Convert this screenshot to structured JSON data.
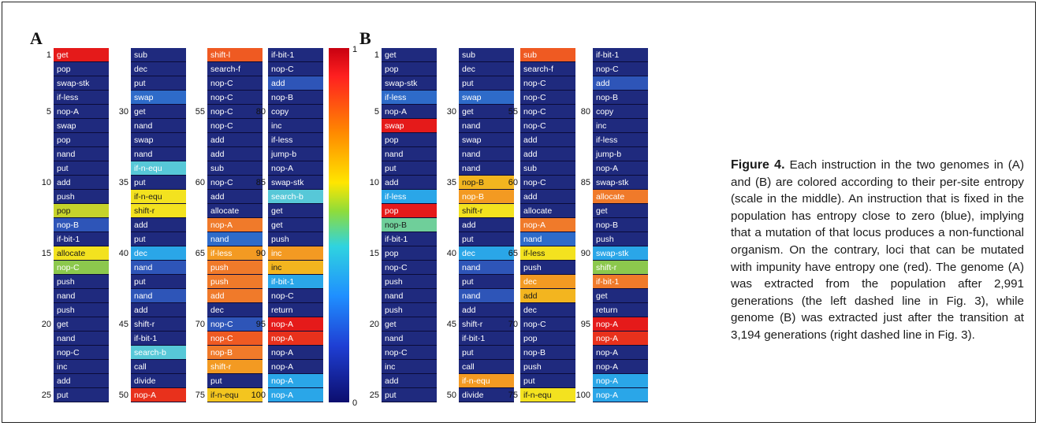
{
  "panel_a": {
    "label": "A",
    "columns": [
      {
        "start": 1,
        "cells": [
          {
            "t": "get",
            "c": "#e51a1a"
          },
          {
            "t": "pop",
            "c": "#1f2a7e"
          },
          {
            "t": "swap-stk",
            "c": "#1f2a7e"
          },
          {
            "t": "if-less",
            "c": "#1f2a7e"
          },
          {
            "t": "nop-A",
            "c": "#1f2a7e"
          },
          {
            "t": "swap",
            "c": "#1f2a7e"
          },
          {
            "t": "pop",
            "c": "#1f2a7e"
          },
          {
            "t": "nand",
            "c": "#1f2a7e"
          },
          {
            "t": "put",
            "c": "#1f2a7e"
          },
          {
            "t": "add",
            "c": "#1f2a7e"
          },
          {
            "t": "push",
            "c": "#1f2a7e"
          },
          {
            "t": "pop",
            "c": "#c6d32b"
          },
          {
            "t": "nop-B",
            "c": "#2e55b8"
          },
          {
            "t": "if-bit-1",
            "c": "#1f2a7e"
          },
          {
            "t": "allocate",
            "c": "#f3e21f"
          },
          {
            "t": "nop-C",
            "c": "#8cc84d"
          },
          {
            "t": "push",
            "c": "#1f2a7e"
          },
          {
            "t": "nand",
            "c": "#1f2a7e"
          },
          {
            "t": "push",
            "c": "#1f2a7e"
          },
          {
            "t": "get",
            "c": "#1f2a7e"
          },
          {
            "t": "nand",
            "c": "#1f2a7e"
          },
          {
            "t": "nop-C",
            "c": "#1f2a7e"
          },
          {
            "t": "inc",
            "c": "#1f2a7e"
          },
          {
            "t": "add",
            "c": "#1f2a7e"
          },
          {
            "t": "put",
            "c": "#1f2a7e"
          }
        ]
      },
      {
        "start": 26,
        "cells": [
          {
            "t": "sub",
            "c": "#1f2a7e"
          },
          {
            "t": "dec",
            "c": "#1f2a7e"
          },
          {
            "t": "put",
            "c": "#1f2a7e"
          },
          {
            "t": "swap",
            "c": "#2e6bc9"
          },
          {
            "t": "get",
            "c": "#1f2a7e"
          },
          {
            "t": "nand",
            "c": "#1f2a7e"
          },
          {
            "t": "swap",
            "c": "#1f2a7e"
          },
          {
            "t": "nand",
            "c": "#1f2a7e"
          },
          {
            "t": "if-n-equ",
            "c": "#57c8d8"
          },
          {
            "t": "put",
            "c": "#1f2a7e"
          },
          {
            "t": "if-n-equ",
            "c": "#f3e21f"
          },
          {
            "t": "shift-r",
            "c": "#f3e21f"
          },
          {
            "t": "add",
            "c": "#1f2a7e"
          },
          {
            "t": "put",
            "c": "#1f2a7e"
          },
          {
            "t": "dec",
            "c": "#2aa6e8"
          },
          {
            "t": "nand",
            "c": "#2e55b8"
          },
          {
            "t": "put",
            "c": "#1f2a7e"
          },
          {
            "t": "nand",
            "c": "#2e55b8"
          },
          {
            "t": "add",
            "c": "#1f2a7e"
          },
          {
            "t": "shift-r",
            "c": "#1f2a7e"
          },
          {
            "t": "if-bit-1",
            "c": "#1f2a7e"
          },
          {
            "t": "search-b",
            "c": "#57c8d8"
          },
          {
            "t": "call",
            "c": "#1f2a7e"
          },
          {
            "t": "divide",
            "c": "#1f2a7e"
          },
          {
            "t": "nop-A",
            "c": "#e8311c"
          }
        ]
      },
      {
        "start": 51,
        "cells": [
          {
            "t": "shift-l",
            "c": "#ef5a22"
          },
          {
            "t": "search-f",
            "c": "#1f2a7e"
          },
          {
            "t": "nop-C",
            "c": "#1f2a7e"
          },
          {
            "t": "nop-C",
            "c": "#1f2a7e"
          },
          {
            "t": "nop-C",
            "c": "#1f2a7e"
          },
          {
            "t": "nop-C",
            "c": "#1f2a7e"
          },
          {
            "t": "add",
            "c": "#1f2a7e"
          },
          {
            "t": "add",
            "c": "#1f2a7e"
          },
          {
            "t": "sub",
            "c": "#1f2a7e"
          },
          {
            "t": "nop-C",
            "c": "#1f2a7e"
          },
          {
            "t": "add",
            "c": "#1f2a7e"
          },
          {
            "t": "allocate",
            "c": "#1f2a7e"
          },
          {
            "t": "nop-A",
            "c": "#f07a2a"
          },
          {
            "t": "nand",
            "c": "#2e6bc9"
          },
          {
            "t": "if-less",
            "c": "#f39a22"
          },
          {
            "t": "push",
            "c": "#f07a2a"
          },
          {
            "t": "push",
            "c": "#f07a2a"
          },
          {
            "t": "add",
            "c": "#f07a2a"
          },
          {
            "t": "dec",
            "c": "#1f2a7e"
          },
          {
            "t": "nop-C",
            "c": "#2e55b8"
          },
          {
            "t": "nop-C",
            "c": "#ef5a22"
          },
          {
            "t": "nop-B",
            "c": "#f07a2a"
          },
          {
            "t": "shift-r",
            "c": "#f39a22"
          },
          {
            "t": "put",
            "c": "#1f2a7e"
          },
          {
            "t": "if-n-equ",
            "c": "#f3c51f"
          }
        ]
      },
      {
        "start": 76,
        "cells": [
          {
            "t": "if-bit-1",
            "c": "#1f2a7e"
          },
          {
            "t": "nop-C",
            "c": "#1f2a7e"
          },
          {
            "t": "add",
            "c": "#2e55b8"
          },
          {
            "t": "nop-B",
            "c": "#1f2a7e"
          },
          {
            "t": "copy",
            "c": "#1f2a7e"
          },
          {
            "t": "inc",
            "c": "#1f2a7e"
          },
          {
            "t": "if-less",
            "c": "#1f2a7e"
          },
          {
            "t": "jump-b",
            "c": "#1f2a7e"
          },
          {
            "t": "nop-A",
            "c": "#1f2a7e"
          },
          {
            "t": "swap-stk",
            "c": "#1f2a7e"
          },
          {
            "t": "search-b",
            "c": "#57c8d8"
          },
          {
            "t": "get",
            "c": "#1f2a7e"
          },
          {
            "t": "get",
            "c": "#1f2a7e"
          },
          {
            "t": "push",
            "c": "#1f2a7e"
          },
          {
            "t": "inc",
            "c": "#f39a22"
          },
          {
            "t": "inc",
            "c": "#f3b51f"
          },
          {
            "t": "if-bit-1",
            "c": "#2aa6e8"
          },
          {
            "t": "nop-C",
            "c": "#1f2a7e"
          },
          {
            "t": "return",
            "c": "#1f2a7e"
          },
          {
            "t": "nop-A",
            "c": "#e51a1a"
          },
          {
            "t": "nop-A",
            "c": "#e8311c"
          },
          {
            "t": "nop-A",
            "c": "#1f2a7e"
          },
          {
            "t": "nop-A",
            "c": "#1f2a7e"
          },
          {
            "t": "nop-A",
            "c": "#2aa6e8"
          },
          {
            "t": "nop-A",
            "c": "#2aa6e8"
          }
        ]
      }
    ]
  },
  "panel_b": {
    "label": "B",
    "columns": [
      {
        "start": 1,
        "cells": [
          {
            "t": "get",
            "c": "#1f2a7e"
          },
          {
            "t": "pop",
            "c": "#1f2a7e"
          },
          {
            "t": "swap-stk",
            "c": "#1f2a7e"
          },
          {
            "t": "if-less",
            "c": "#2e6bc9"
          },
          {
            "t": "nop-A",
            "c": "#1f2a7e"
          },
          {
            "t": "swap",
            "c": "#e51a1a"
          },
          {
            "t": "pop",
            "c": "#1f2a7e"
          },
          {
            "t": "nand",
            "c": "#1f2a7e"
          },
          {
            "t": "put",
            "c": "#1f2a7e"
          },
          {
            "t": "add",
            "c": "#1f2a7e"
          },
          {
            "t": "if-less",
            "c": "#2aa6e8"
          },
          {
            "t": "pop",
            "c": "#e51a1a"
          },
          {
            "t": "nop-B",
            "c": "#6fcf9a"
          },
          {
            "t": "if-bit-1",
            "c": "#1f2a7e"
          },
          {
            "t": "pop",
            "c": "#1f2a7e"
          },
          {
            "t": "nop-C",
            "c": "#1f2a7e"
          },
          {
            "t": "push",
            "c": "#1f2a7e"
          },
          {
            "t": "nand",
            "c": "#1f2a7e"
          },
          {
            "t": "push",
            "c": "#1f2a7e"
          },
          {
            "t": "get",
            "c": "#1f2a7e"
          },
          {
            "t": "nand",
            "c": "#1f2a7e"
          },
          {
            "t": "nop-C",
            "c": "#1f2a7e"
          },
          {
            "t": "inc",
            "c": "#1f2a7e"
          },
          {
            "t": "add",
            "c": "#1f2a7e"
          },
          {
            "t": "put",
            "c": "#1f2a7e"
          }
        ]
      },
      {
        "start": 26,
        "cells": [
          {
            "t": "sub",
            "c": "#1f2a7e"
          },
          {
            "t": "dec",
            "c": "#1f2a7e"
          },
          {
            "t": "put",
            "c": "#1f2a7e"
          },
          {
            "t": "swap",
            "c": "#2e6bc9"
          },
          {
            "t": "get",
            "c": "#1f2a7e"
          },
          {
            "t": "nand",
            "c": "#1f2a7e"
          },
          {
            "t": "swap",
            "c": "#1f2a7e"
          },
          {
            "t": "nand",
            "c": "#1f2a7e"
          },
          {
            "t": "nand",
            "c": "#1f2a7e"
          },
          {
            "t": "nop-B",
            "c": "#f3b51f"
          },
          {
            "t": "nop-B",
            "c": "#f39a22"
          },
          {
            "t": "shift-r",
            "c": "#f3e21f"
          },
          {
            "t": "add",
            "c": "#1f2a7e"
          },
          {
            "t": "put",
            "c": "#1f2a7e"
          },
          {
            "t": "dec",
            "c": "#2aa6e8"
          },
          {
            "t": "nand",
            "c": "#2e55b8"
          },
          {
            "t": "put",
            "c": "#1f2a7e"
          },
          {
            "t": "nand",
            "c": "#2e55b8"
          },
          {
            "t": "add",
            "c": "#1f2a7e"
          },
          {
            "t": "shift-r",
            "c": "#1f2a7e"
          },
          {
            "t": "if-bit-1",
            "c": "#1f2a7e"
          },
          {
            "t": "put",
            "c": "#1f2a7e"
          },
          {
            "t": "call",
            "c": "#1f2a7e"
          },
          {
            "t": "if-n-equ",
            "c": "#f39a22"
          },
          {
            "t": "divide",
            "c": "#1f2a7e"
          }
        ]
      },
      {
        "start": 51,
        "cells": [
          {
            "t": "sub",
            "c": "#ef5a22"
          },
          {
            "t": "search-f",
            "c": "#1f2a7e"
          },
          {
            "t": "nop-C",
            "c": "#1f2a7e"
          },
          {
            "t": "nop-C",
            "c": "#1f2a7e"
          },
          {
            "t": "nop-C",
            "c": "#1f2a7e"
          },
          {
            "t": "nop-C",
            "c": "#1f2a7e"
          },
          {
            "t": "add",
            "c": "#1f2a7e"
          },
          {
            "t": "add",
            "c": "#1f2a7e"
          },
          {
            "t": "sub",
            "c": "#1f2a7e"
          },
          {
            "t": "nop-C",
            "c": "#1f2a7e"
          },
          {
            "t": "add",
            "c": "#1f2a7e"
          },
          {
            "t": "allocate",
            "c": "#1f2a7e"
          },
          {
            "t": "nop-A",
            "c": "#f07a2a"
          },
          {
            "t": "nand",
            "c": "#2e6bc9"
          },
          {
            "t": "if-less",
            "c": "#f3e21f"
          },
          {
            "t": "push",
            "c": "#1f2a7e"
          },
          {
            "t": "dec",
            "c": "#f39a22"
          },
          {
            "t": "add",
            "c": "#f3b51f"
          },
          {
            "t": "dec",
            "c": "#1f2a7e"
          },
          {
            "t": "nop-C",
            "c": "#1f2a7e"
          },
          {
            "t": "pop",
            "c": "#1f2a7e"
          },
          {
            "t": "nop-B",
            "c": "#1f2a7e"
          },
          {
            "t": "push",
            "c": "#1f2a7e"
          },
          {
            "t": "put",
            "c": "#1f2a7e"
          },
          {
            "t": "if-n-equ",
            "c": "#f3e21f"
          }
        ]
      },
      {
        "start": 76,
        "cells": [
          {
            "t": "if-bit-1",
            "c": "#1f2a7e"
          },
          {
            "t": "nop-C",
            "c": "#1f2a7e"
          },
          {
            "t": "add",
            "c": "#2e55b8"
          },
          {
            "t": "nop-B",
            "c": "#1f2a7e"
          },
          {
            "t": "copy",
            "c": "#1f2a7e"
          },
          {
            "t": "inc",
            "c": "#1f2a7e"
          },
          {
            "t": "if-less",
            "c": "#1f2a7e"
          },
          {
            "t": "jump-b",
            "c": "#1f2a7e"
          },
          {
            "t": "nop-A",
            "c": "#1f2a7e"
          },
          {
            "t": "swap-stk",
            "c": "#1f2a7e"
          },
          {
            "t": "allocate",
            "c": "#f07a2a"
          },
          {
            "t": "get",
            "c": "#1f2a7e"
          },
          {
            "t": "nop-B",
            "c": "#1f2a7e"
          },
          {
            "t": "push",
            "c": "#1f2a7e"
          },
          {
            "t": "swap-stk",
            "c": "#2aa6e8"
          },
          {
            "t": "shift-r",
            "c": "#8cc84d"
          },
          {
            "t": "if-bit-1",
            "c": "#f07a2a"
          },
          {
            "t": "get",
            "c": "#1f2a7e"
          },
          {
            "t": "return",
            "c": "#1f2a7e"
          },
          {
            "t": "nop-A",
            "c": "#e51a1a"
          },
          {
            "t": "nop-A",
            "c": "#e8311c"
          },
          {
            "t": "nop-A",
            "c": "#1f2a7e"
          },
          {
            "t": "nop-A",
            "c": "#1f2a7e"
          },
          {
            "t": "nop-A",
            "c": "#2aa6e8"
          },
          {
            "t": "nop-A",
            "c": "#2aa6e8"
          }
        ]
      }
    ]
  },
  "colorbar": {
    "top_label": "1",
    "bottom_label": "0"
  },
  "caption": {
    "label": "Figure 4.",
    "text": "Each instruction in the two genomes in (A) and (B) are colored according to their per-site entropy (scale in the middle). An instruction that is fixed in the population has entropy close to zero (blue), implying that a mutation of that locus produces a non-functional organism. On the contrary, loci that can be mutated with impunity have entropy one (red). The genome (A) was extracted from the population after 2,991 generations (the left dashed line in Fig. 3), while genome (B) was extracted just after the transition at 3,194 generations (right dashed line in Fig. 3)."
  }
}
